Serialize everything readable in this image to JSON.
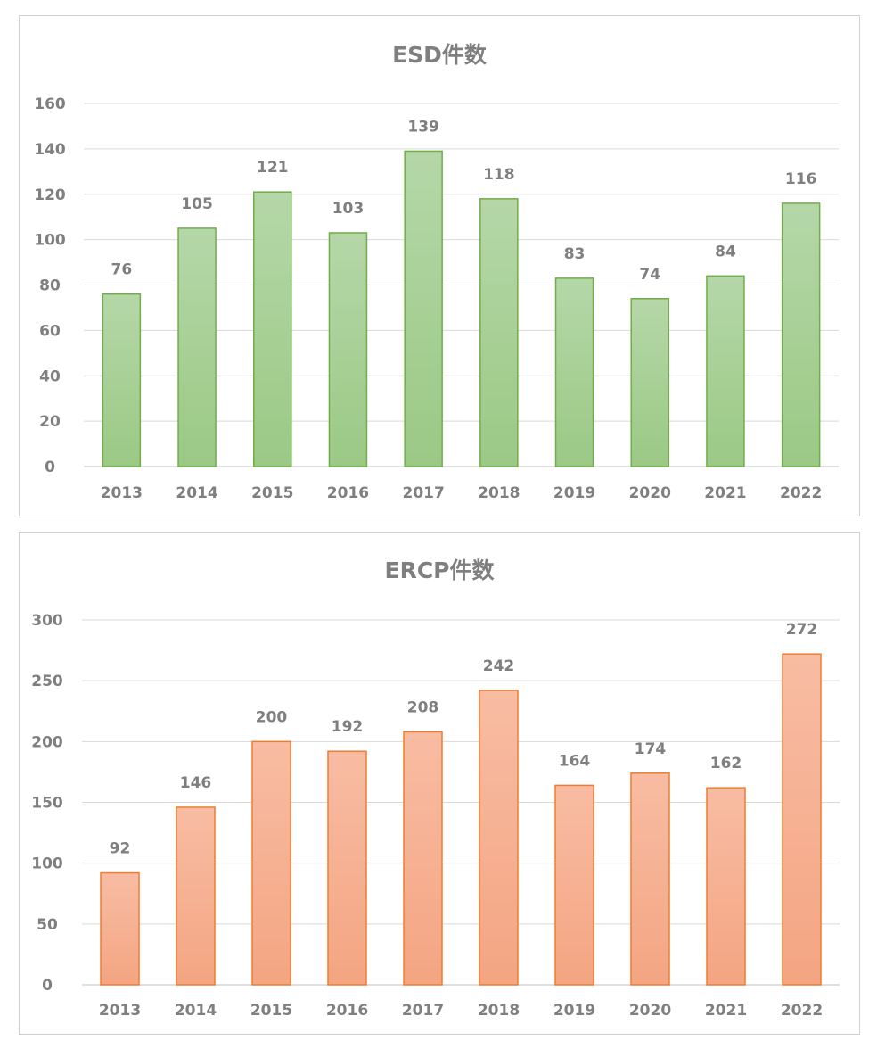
{
  "chart_data": [
    {
      "type": "bar",
      "title": "ESD件数",
      "categories": [
        "2013",
        "2014",
        "2015",
        "2016",
        "2017",
        "2018",
        "2019",
        "2020",
        "2021",
        "2022"
      ],
      "values": [
        76,
        105,
        121,
        103,
        139,
        118,
        83,
        74,
        84,
        116
      ],
      "ylim": [
        0,
        160
      ],
      "yticks": [
        "0",
        "20",
        "40",
        "60",
        "80",
        "100",
        "120",
        "140",
        "160"
      ],
      "xlabel": "",
      "ylabel": "",
      "grid": true,
      "legend": "none",
      "data_labels": true,
      "colors": {
        "bar_fill_top": "#b5d7a8",
        "bar_fill_bottom": "#9bc985",
        "bar_border": "#70ad47"
      }
    },
    {
      "type": "bar",
      "title": "ERCP件数",
      "categories": [
        "2013",
        "2014",
        "2015",
        "2016",
        "2017",
        "2018",
        "2019",
        "2020",
        "2021",
        "2022"
      ],
      "values": [
        92,
        146,
        200,
        192,
        208,
        242,
        164,
        174,
        162,
        272
      ],
      "ylim": [
        0,
        300
      ],
      "yticks": [
        "0",
        "50",
        "100",
        "150",
        "200",
        "250",
        "300"
      ],
      "xlabel": "",
      "ylabel": "",
      "grid": true,
      "legend": "none",
      "data_labels": true,
      "colors": {
        "bar_fill_top": "#f8bca3",
        "bar_fill_bottom": "#f4a582",
        "bar_border": "#ed7d31"
      }
    }
  ]
}
